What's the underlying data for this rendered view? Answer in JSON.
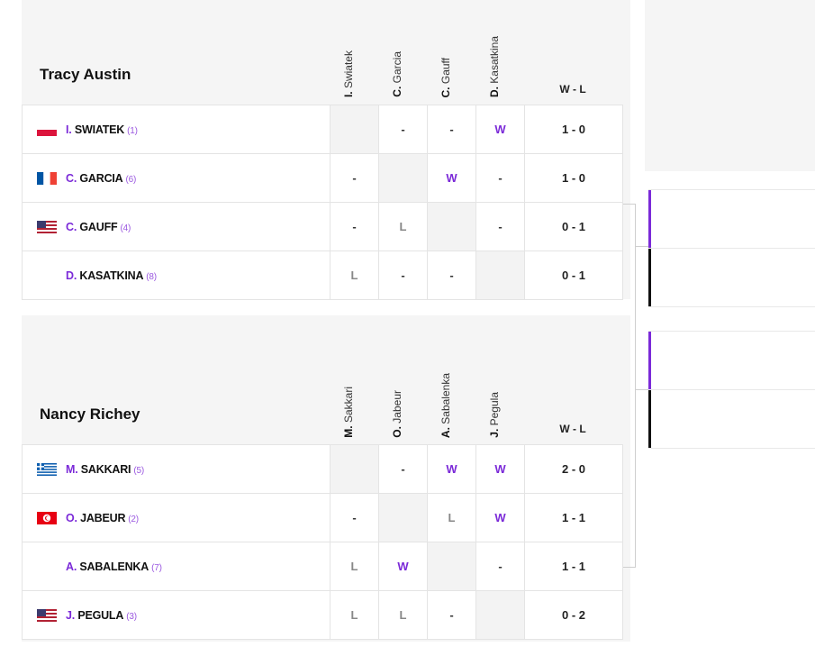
{
  "groups": [
    {
      "title": "Tracy Austin",
      "columns": [
        {
          "initial": "I.",
          "name": "Swiatek"
        },
        {
          "initial": "C.",
          "name": "Garcia"
        },
        {
          "initial": "C.",
          "name": "Gauff"
        },
        {
          "initial": "D.",
          "name": "Kasatkina"
        }
      ],
      "wl_label": "W - L",
      "players": [
        {
          "initial": "I.",
          "surname": "SWIATEK",
          "seed": "(1)",
          "flag": "pl-flag-icon",
          "results": [
            "",
            "-",
            "-",
            "W"
          ],
          "record": "1 - 0"
        },
        {
          "initial": "C.",
          "surname": "GARCIA",
          "seed": "(6)",
          "flag": "fr-flag-icon",
          "results": [
            "-",
            "",
            "W",
            "-"
          ],
          "record": "1 - 0"
        },
        {
          "initial": "C.",
          "surname": "GAUFF",
          "seed": "(4)",
          "flag": "us-flag-icon",
          "results": [
            "-",
            "L",
            "",
            "-"
          ],
          "record": "0 - 1"
        },
        {
          "initial": "D.",
          "surname": "KASATKINA",
          "seed": "(8)",
          "flag": "",
          "results": [
            "L",
            "-",
            "-",
            ""
          ],
          "record": "0 - 1"
        }
      ]
    },
    {
      "title": "Nancy Richey",
      "columns": [
        {
          "initial": "M.",
          "name": "Sakkari"
        },
        {
          "initial": "O.",
          "name": "Jabeur"
        },
        {
          "initial": "A.",
          "name": "Sabalenka"
        },
        {
          "initial": "J.",
          "name": "Pegula"
        }
      ],
      "wl_label": "W - L",
      "players": [
        {
          "initial": "M.",
          "surname": "SAKKARI",
          "seed": "(5)",
          "flag": "gr-flag-icon",
          "results": [
            "",
            "-",
            "W",
            "W"
          ],
          "record": "2 - 0"
        },
        {
          "initial": "O.",
          "surname": "JABEUR",
          "seed": "(2)",
          "flag": "tn-flag-icon",
          "results": [
            "-",
            "",
            "L",
            "W"
          ],
          "record": "1 - 1"
        },
        {
          "initial": "A.",
          "surname": "SABALENKA",
          "seed": "(7)",
          "flag": "",
          "results": [
            "L",
            "W",
            "",
            "-"
          ],
          "record": "1 - 1"
        },
        {
          "initial": "J.",
          "surname": "PEGULA",
          "seed": "(3)",
          "flag": "us-flag-icon",
          "results": [
            "L",
            "L",
            "-",
            ""
          ],
          "record": "0 - 2"
        }
      ]
    }
  ],
  "colors": {
    "accent": "#7b2ad8",
    "winner_bar": "#7b2ad8",
    "loser_bar": "#111111"
  }
}
